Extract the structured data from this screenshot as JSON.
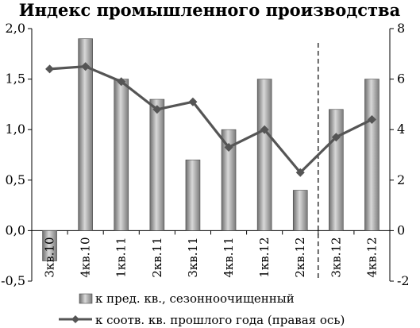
{
  "chart_data": {
    "type": "bar",
    "title": "Индекс промышленного производства",
    "categories": [
      "3кв.10",
      "4кв.10",
      "1кв.11",
      "2кв.11",
      "3кв.11",
      "4кв.11",
      "1кв.12",
      "2кв.12",
      "3кв.12",
      "4кв.12"
    ],
    "left_axis": {
      "ylim": [
        -0.5,
        2.0
      ],
      "ticks": [
        "-0,5",
        "0,0",
        "0,5",
        "1,0",
        "1,5",
        "2,0"
      ],
      "tick_values": [
        -0.5,
        0,
        0.5,
        1.0,
        1.5,
        2.0
      ]
    },
    "right_axis": {
      "ylim": [
        -2,
        8
      ],
      "ticks": [
        "-2",
        "0",
        "2",
        "4",
        "6",
        "8"
      ],
      "tick_values": [
        -2,
        0,
        2,
        4,
        6,
        8
      ]
    },
    "series": [
      {
        "name": "к пред. кв., сезонноочищенный",
        "type": "bar",
        "axis": "left",
        "color": "#8c8c8c",
        "values": [
          -0.3,
          1.9,
          1.5,
          1.3,
          0.7,
          1.0,
          1.5,
          0.4,
          1.2,
          1.5
        ]
      },
      {
        "name": "к соотв. кв. прошлого года (правая ось)",
        "type": "line",
        "axis": "right",
        "color": "#555555",
        "values": [
          6.4,
          6.5,
          5.9,
          4.8,
          5.1,
          3.3,
          4.0,
          2.3,
          3.7,
          4.4
        ]
      }
    ],
    "forecast_divider_after_index": 7,
    "grid": false,
    "legend": "bottom"
  }
}
